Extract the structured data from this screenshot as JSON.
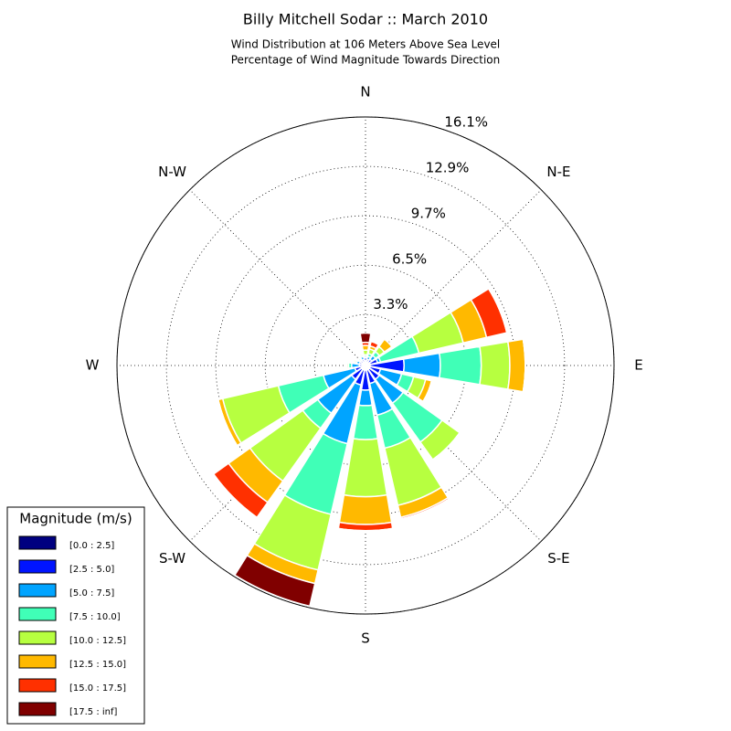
{
  "chart_data": {
    "type": "windrose",
    "title": "Billy Mitchell Sodar :: March 2010",
    "subtitle": [
      "Wind Distribution at 106 Meters Above Sea Level",
      "Percentage of Wind Magnitude Towards Direction"
    ],
    "legend_title": "Magnitude (m/s)",
    "legend": "lower left",
    "grid": true,
    "categories": [
      "N",
      null,
      "N-E",
      null,
      "E",
      null,
      "S-E",
      null,
      "S",
      null,
      "S-W",
      null,
      "W",
      null,
      "N-W",
      null
    ],
    "ylim": [
      0,
      16.1
    ],
    "yticks": [
      {
        "value": 3.3,
        "label": "3.3%"
      },
      {
        "value": 6.5,
        "label": "6.5%"
      },
      {
        "value": 9.7,
        "label": "9.7%"
      },
      {
        "value": 12.9,
        "label": "12.9%"
      },
      {
        "value": 16.1,
        "label": "16.1%"
      }
    ],
    "series": [
      {
        "name": "[0.0 : 2.5]",
        "color": "#000080",
        "values": [
          0.3,
          0.2,
          0.2,
          0.3,
          0.3,
          0.3,
          0.3,
          0.3,
          0.3,
          0.3,
          0.3,
          0.3,
          0.2,
          0.2,
          0.2,
          0.2
        ]
      },
      {
        "name": "[2.5 : 5.0]",
        "color": "#0014ff",
        "values": [
          0.2,
          0.2,
          0.3,
          0.5,
          2.2,
          0.7,
          0.8,
          0.9,
          1.3,
          1.0,
          0.8,
          0.4,
          0.2,
          0.2,
          0.2,
          0.2
        ]
      },
      {
        "name": "[5.0 : 7.5]",
        "color": "#00a4ff",
        "values": [
          0.1,
          0.2,
          0.3,
          0.2,
          2.35,
          1.4,
          1.9,
          2.1,
          1.0,
          3.9,
          2.7,
          2.1,
          0.5,
          0.2,
          0.1,
          0.2
        ]
      },
      {
        "name": "[7.5 : 10.0]",
        "color": "#40ffb7",
        "values": [
          0.1,
          0.2,
          0.3,
          2.55,
          2.65,
          0.8,
          3.1,
          2.2,
          2.2,
          4.7,
          1.2,
          3.0,
          0.2,
          0.1,
          0.1,
          0.1
        ]
      },
      {
        "name": "[10.0 : 12.5]",
        "color": "#b7ff40",
        "values": [
          0.3,
          0.3,
          0.4,
          2.95,
          1.85,
          0.8,
          1.4,
          3.8,
          3.7,
          3.7,
          4.2,
          3.7,
          0.1,
          0.1,
          0,
          0.1
        ]
      },
      {
        "name": "[12.5 : 15.0]",
        "color": "#ffb900",
        "values": [
          0.3,
          0.2,
          0.6,
          1.55,
          1.0,
          0.4,
          0,
          0.8,
          1.8,
          0.9,
          1.7,
          0.3,
          0,
          0,
          0,
          0
        ]
      },
      {
        "name": "[15.0 : 17.5]",
        "color": "#ff3000",
        "values": [
          0.2,
          0.3,
          0,
          1.35,
          0,
          0,
          0,
          0.1,
          0.4,
          0,
          1.2,
          0,
          0,
          0,
          0,
          0
        ]
      },
      {
        "name": "[17.5 : inf]",
        "color": "#800000",
        "values": [
          0.6,
          0,
          0,
          0,
          0,
          0,
          0,
          0,
          0,
          1.5,
          0,
          0,
          0,
          0,
          0,
          0
        ]
      }
    ]
  }
}
